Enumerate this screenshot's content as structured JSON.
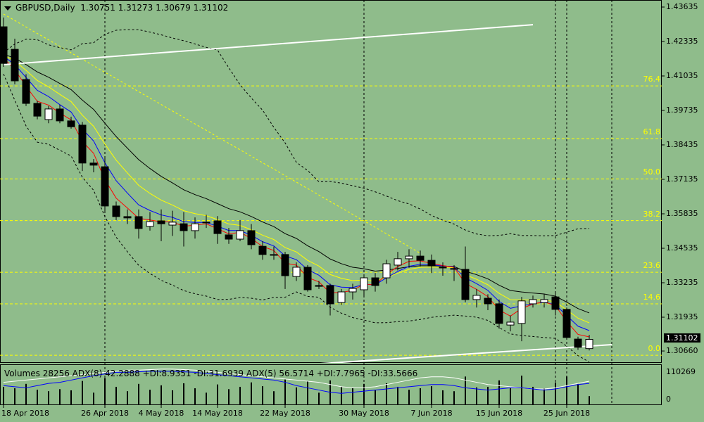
{
  "header": {
    "symbol": "GBPUSD,Daily",
    "open": "1.30751",
    "high": "1.31273",
    "low": "1.30679",
    "close": "1.31102"
  },
  "indicator_text": "Volumes 28256  ADX(8) 42.2888 +DI:8.9351 -DI:31.6939  ADX(5) 56.5714 +DI:7.7965 -DI:33.5666",
  "last_price": "1.31102",
  "price_axis": [
    "1.43635",
    "1.42335",
    "1.41035",
    "1.39735",
    "1.38435",
    "1.37135",
    "1.35835",
    "1.34535",
    "1.33235",
    "1.31935",
    "1.30660"
  ],
  "volume_axis": [
    "110269",
    "0"
  ],
  "fib_levels": [
    {
      "label": "76.4",
      "price": 1.4066
    },
    {
      "label": "61.8",
      "price": 1.3867
    },
    {
      "label": "50.0",
      "price": 1.3715
    },
    {
      "label": "38.2",
      "price": 1.3558
    },
    {
      "label": "23.6",
      "price": 1.3363
    },
    {
      "label": "14.6",
      "price": 1.3244
    },
    {
      "label": "0.0",
      "price": 1.305
    }
  ],
  "colors": {
    "background": "#8fbc8b",
    "fib": "#ffff00",
    "ma_fast": "#ff0000",
    "ma_mid": "#0000ff",
    "ma_slow": "#ffff00",
    "ma_long": "#000000",
    "trendline": "#ffffff"
  },
  "chart_data": {
    "type": "candlestick",
    "price_range": [
      1.303,
      1.439
    ],
    "date_labels": [
      {
        "label": "18 Apr 2018",
        "index": 0
      },
      {
        "label": "26 Apr 2018",
        "index": 9
      },
      {
        "label": "4 May 2018",
        "index": 14
      },
      {
        "label": "14 May 2018",
        "index": 19
      },
      {
        "label": "22 May 2018",
        "index": 25
      },
      {
        "label": "30 May 2018",
        "index": 32
      },
      {
        "label": "7 Jun 2018",
        "index": 38
      },
      {
        "label": "15 Jun 2018",
        "index": 44
      },
      {
        "label": "25 Jun 2018",
        "index": 50
      }
    ],
    "ohlc": [
      [
        1.4289,
        1.4324,
        1.4138,
        1.4151
      ],
      [
        1.4204,
        1.4244,
        1.4072,
        1.4085
      ],
      [
        1.409,
        1.411,
        1.399,
        1.4
      ],
      [
        1.4,
        1.401,
        1.394,
        1.3952
      ],
      [
        1.3939,
        1.399,
        1.3925,
        1.3979
      ],
      [
        1.3979,
        1.3995,
        1.3925,
        1.3934
      ],
      [
        1.3934,
        1.395,
        1.3905,
        1.3912
      ],
      [
        1.3918,
        1.393,
        1.3745,
        1.3775
      ],
      [
        1.3775,
        1.379,
        1.374,
        1.3767
      ],
      [
        1.3761,
        1.3793,
        1.3594,
        1.3613
      ],
      [
        1.3613,
        1.363,
        1.356,
        1.3573
      ],
      [
        1.3573,
        1.36,
        1.3545,
        1.3568
      ],
      [
        1.3573,
        1.36,
        1.349,
        1.3528
      ],
      [
        1.3536,
        1.359,
        1.352,
        1.3554
      ],
      [
        1.3557,
        1.36,
        1.348,
        1.3546
      ],
      [
        1.3541,
        1.3595,
        1.35,
        1.3552
      ],
      [
        1.3546,
        1.359,
        1.346,
        1.352
      ],
      [
        1.352,
        1.357,
        1.349,
        1.3546
      ],
      [
        1.3552,
        1.358,
        1.353,
        1.355
      ],
      [
        1.3557,
        1.3575,
        1.347,
        1.3509
      ],
      [
        1.3504,
        1.353,
        1.347,
        1.3488
      ],
      [
        1.3488,
        1.356,
        1.348,
        1.352
      ],
      [
        1.352,
        1.3545,
        1.345,
        1.3467
      ],
      [
        1.3461,
        1.348,
        1.341,
        1.343
      ],
      [
        1.3427,
        1.346,
        1.341,
        1.343
      ],
      [
        1.343,
        1.344,
        1.33,
        1.335
      ],
      [
        1.3347,
        1.34,
        1.333,
        1.3382
      ],
      [
        1.3382,
        1.339,
        1.329,
        1.3297
      ],
      [
        1.3313,
        1.333,
        1.33,
        1.331
      ],
      [
        1.3313,
        1.332,
        1.32,
        1.3244
      ],
      [
        1.3249,
        1.33,
        1.324,
        1.3289
      ],
      [
        1.3289,
        1.332,
        1.326,
        1.3302
      ],
      [
        1.3297,
        1.335,
        1.327,
        1.3342
      ],
      [
        1.3342,
        1.336,
        1.329,
        1.3313
      ],
      [
        1.3342,
        1.341,
        1.332,
        1.3395
      ],
      [
        1.339,
        1.344,
        1.337,
        1.3414
      ],
      [
        1.3414,
        1.345,
        1.338,
        1.3424
      ],
      [
        1.3424,
        1.3445,
        1.3385,
        1.3408
      ],
      [
        1.3408,
        1.343,
        1.336,
        1.3387
      ],
      [
        1.3382,
        1.34,
        1.335,
        1.338
      ],
      [
        1.3377,
        1.339,
        1.333,
        1.3375
      ],
      [
        1.3374,
        1.346,
        1.325,
        1.326
      ],
      [
        1.326,
        1.33,
        1.323,
        1.3276
      ],
      [
        1.3265,
        1.328,
        1.322,
        1.3244
      ],
      [
        1.3244,
        1.326,
        1.315,
        1.317
      ],
      [
        1.3164,
        1.32,
        1.314,
        1.3175
      ],
      [
        1.317,
        1.327,
        1.3103,
        1.3255
      ],
      [
        1.3244,
        1.3275,
        1.323,
        1.326
      ],
      [
        1.3249,
        1.328,
        1.323,
        1.326
      ],
      [
        1.327,
        1.3285,
        1.32,
        1.3223
      ],
      [
        1.3223,
        1.323,
        1.311,
        1.3117
      ],
      [
        1.3111,
        1.312,
        1.307,
        1.308
      ],
      [
        1.3075,
        1.3127,
        1.3068,
        1.311
      ]
    ],
    "volumes": [
      60000,
      55000,
      70000,
      50000,
      45000,
      52000,
      48000,
      80000,
      40000,
      90000,
      60000,
      45000,
      70000,
      50000,
      65000,
      48000,
      72000,
      55000,
      40000,
      68000,
      52000,
      60000,
      75000,
      62000,
      45000,
      85000,
      58000,
      80000,
      40000,
      82000,
      60000,
      55000,
      70000,
      50000,
      72000,
      60000,
      50000,
      55000,
      62000,
      48000,
      45000,
      95000,
      58000,
      60000,
      82000,
      55000,
      98000,
      60000,
      55000,
      75000,
      95000,
      70000,
      28256
    ],
    "adx_white": [
      40,
      42,
      44,
      46,
      48,
      50,
      52,
      54,
      56,
      58,
      60,
      62,
      62,
      63,
      64,
      64,
      63,
      62,
      60,
      58,
      56,
      54,
      52,
      50,
      48,
      46,
      44,
      42,
      40,
      36,
      32,
      30,
      30,
      32,
      36,
      40,
      44,
      48,
      50,
      50,
      48,
      44,
      40,
      36,
      34,
      32,
      30,
      28,
      28,
      30,
      34,
      38,
      42
    ],
    "adx_blue": [
      34,
      32,
      30,
      34,
      38,
      40,
      44,
      48,
      52,
      55,
      58,
      58,
      59,
      60,
      60,
      60,
      59,
      58,
      56,
      54,
      52,
      50,
      48,
      46,
      44,
      40,
      34,
      30,
      26,
      22,
      20,
      22,
      24,
      26,
      28,
      30,
      32,
      34,
      36,
      36,
      34,
      30,
      28,
      26,
      28,
      30,
      30,
      28,
      26,
      28,
      32,
      36,
      38
    ],
    "trendlines": [
      {
        "from": [
          0,
          1.4146
        ],
        "to": [
          47,
          1.4297
        ]
      },
      {
        "from": [
          28,
          1.3018
        ],
        "to": [
          54,
          1.309
        ]
      }
    ],
    "fib_diagonal": {
      "from": [
        0,
        1.4337
      ],
      "to": [
        37,
        1.3435
      ]
    }
  }
}
